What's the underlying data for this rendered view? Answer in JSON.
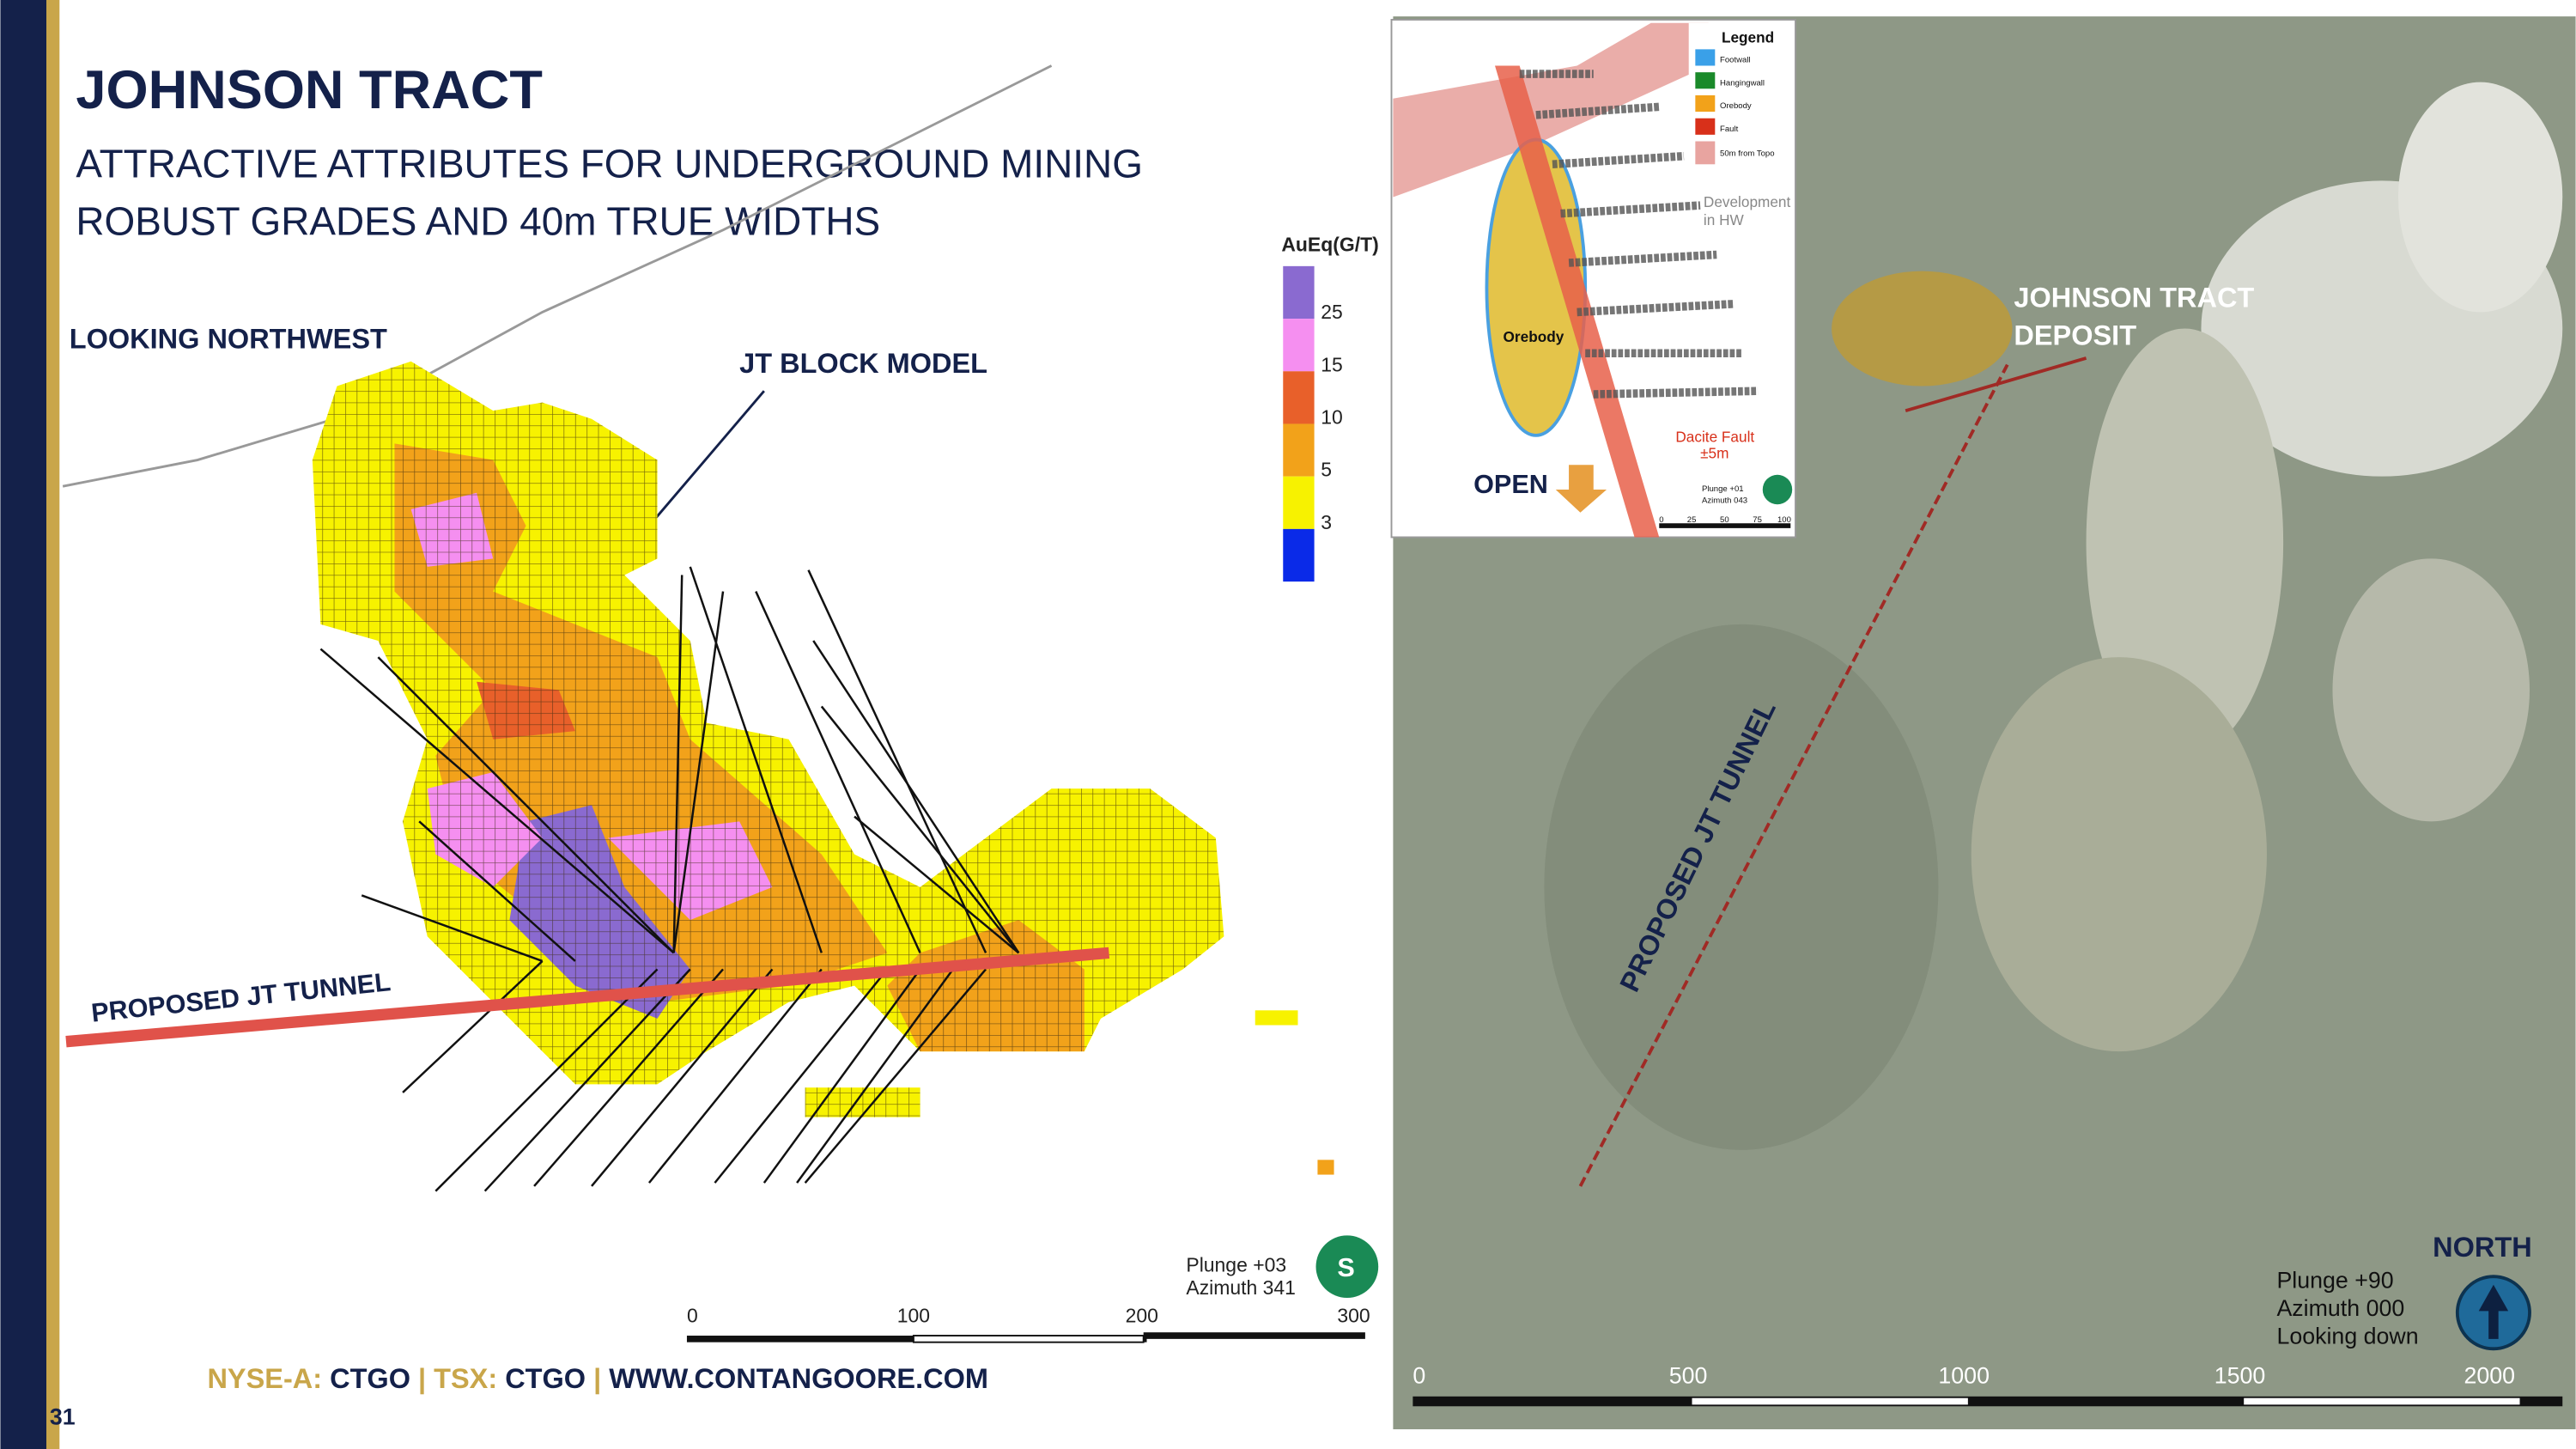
{
  "header": {
    "title": "JOHNSON TRACT",
    "subtitle": [
      "ATTRACTIVE ATTRIBUTES FOR UNDERGROUND MINING",
      "ROBUST GRADES AND 40m TRUE WIDTHS"
    ]
  },
  "section_view": {
    "view_label": "LOOKING NORTHWEST",
    "model_label": "JT BLOCK MODEL",
    "tunnel_label": "PROPOSED JT TUNNEL",
    "grade_legend": {
      "title": "AuEq(G/T)",
      "values": [
        25,
        15,
        10,
        5,
        3
      ]
    },
    "orientation": [
      "Plunge +03",
      "Azimuth 341"
    ],
    "compass": "S",
    "scale": [
      0,
      100,
      200,
      300
    ]
  },
  "map_view": {
    "deposit_label": [
      "JOHNSON TRACT",
      "DEPOSIT"
    ],
    "tunnel_label": "PROPOSED JT TUNNEL",
    "north": "NORTH",
    "orientation": [
      "Plunge +90",
      "Azimuth 000",
      "Looking down"
    ],
    "scale": [
      0,
      500,
      1000,
      1500,
      2000
    ]
  },
  "inset": {
    "legend_title": "Legend",
    "legend_items": [
      "Footwall",
      "Hangingwall",
      "Orebody",
      "Fault",
      "50m from Topo"
    ],
    "development": [
      "Development",
      "in HW"
    ],
    "orebody": "Orebody",
    "fault": [
      "Dacite Fault",
      "±5m"
    ],
    "open": "OPEN",
    "orientation": [
      "Plunge +01",
      "Azimuth 043"
    ],
    "scale": [
      0,
      25,
      50,
      75,
      100
    ]
  },
  "footer": {
    "parts": [
      "NYSE-A:",
      "CTGO",
      "|",
      "TSX:",
      "CTGO",
      "|",
      "WWW.CONTANGOORE.COM"
    ],
    "page": 31
  }
}
